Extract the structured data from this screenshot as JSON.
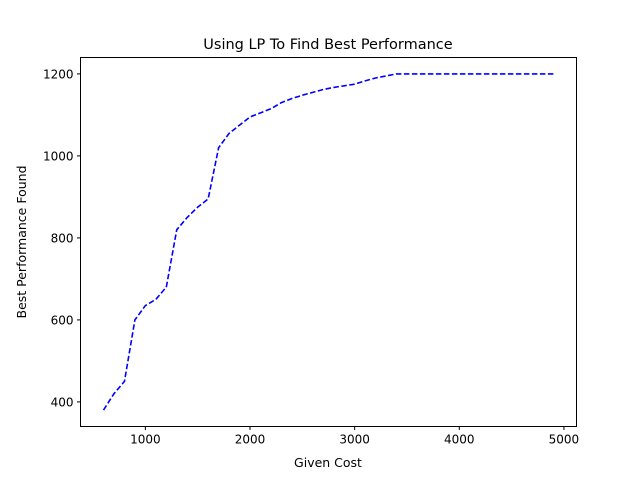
{
  "chart_data": {
    "type": "line",
    "title": "Using LP To Find Best Performance",
    "xlabel": "Given Cost",
    "ylabel": "Best Performance Found",
    "xlim": [
      380,
      5120
    ],
    "ylim": [
      340,
      1240
    ],
    "xticks": [
      1000,
      2000,
      3000,
      4000,
      5000
    ],
    "yticks": [
      400,
      600,
      800,
      1000,
      1200
    ],
    "grid": false,
    "series": [
      {
        "color": "#0000ff",
        "linestyle": "dashed",
        "x": [
          600,
          700,
          800,
          900,
          1000,
          1100,
          1200,
          1300,
          1400,
          1500,
          1600,
          1700,
          1800,
          1900,
          2000,
          2100,
          2200,
          2300,
          2400,
          2500,
          2600,
          2700,
          2800,
          2900,
          3000,
          3100,
          3200,
          3300,
          3400,
          3500,
          3600,
          3700,
          3800,
          3900,
          4000,
          4100,
          4200,
          4300,
          4400,
          4500,
          4600,
          4700,
          4800,
          4900
        ],
        "y": [
          380,
          420,
          450,
          600,
          635,
          650,
          680,
          820,
          850,
          875,
          895,
          1020,
          1055,
          1075,
          1095,
          1105,
          1115,
          1130,
          1140,
          1148,
          1155,
          1162,
          1167,
          1171,
          1175,
          1183,
          1190,
          1195,
          1200,
          1200,
          1200,
          1200,
          1200,
          1200,
          1200,
          1200,
          1200,
          1200,
          1200,
          1200,
          1200,
          1200,
          1200,
          1200
        ]
      }
    ]
  }
}
